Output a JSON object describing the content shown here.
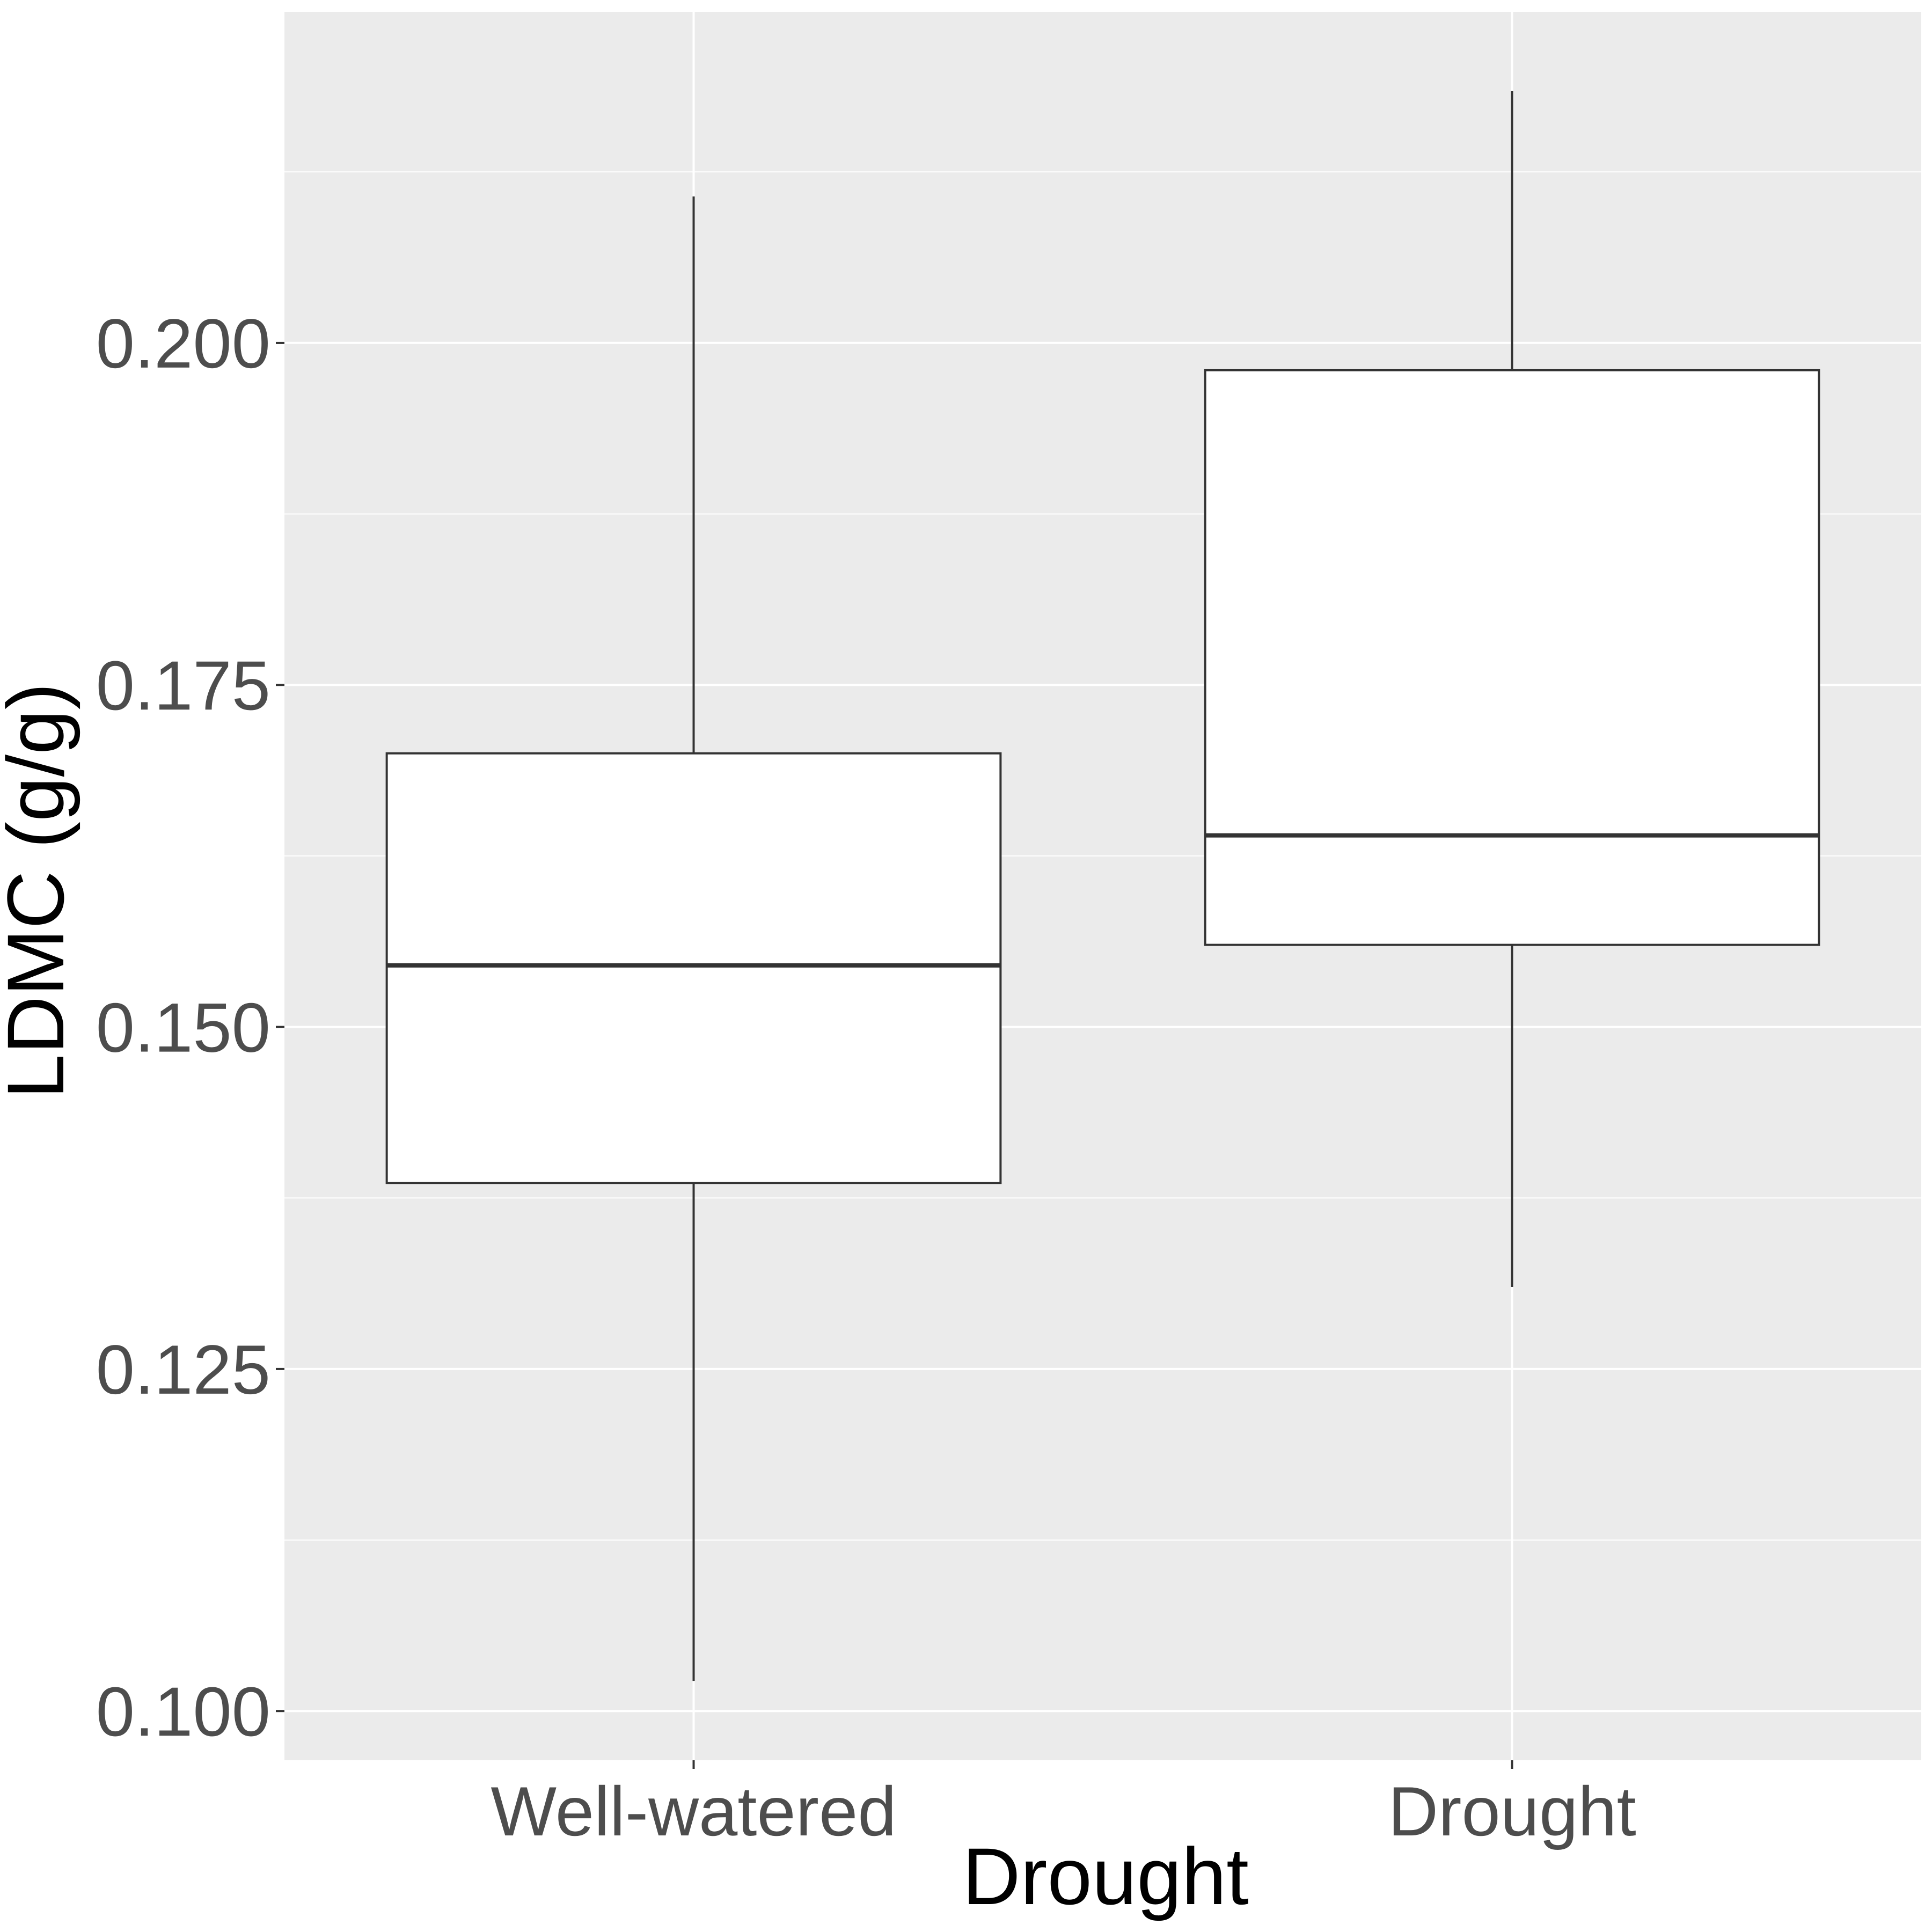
{
  "chart_data": {
    "type": "boxplot",
    "title": "",
    "xlabel": "Drought",
    "ylabel": "LDMC (g/g)",
    "categories": [
      "Well-watered",
      "Drought"
    ],
    "boxes": [
      {
        "category": "Well-watered",
        "whisker_low": 0.1022,
        "q1": 0.1386,
        "median": 0.1545,
        "q3": 0.17,
        "whisker_high": 0.2107
      },
      {
        "category": "Drought",
        "whisker_low": 0.131,
        "q1": 0.156,
        "median": 0.164,
        "q3": 0.198,
        "whisker_high": 0.2184
      }
    ],
    "ylim": [
      0.0964,
      0.2242
    ],
    "yticks": [
      0.1,
      0.125,
      0.15,
      0.175,
      0.2
    ],
    "ytick_labels": [
      "0.100",
      "0.125",
      "0.150",
      "0.175",
      "0.200"
    ],
    "grid": true,
    "colors": {
      "panel": "#EBEBEB",
      "grid": "#FFFFFF",
      "box_fill": "#FFFFFF",
      "box_line": "#333333",
      "whisker": "#333333"
    }
  }
}
